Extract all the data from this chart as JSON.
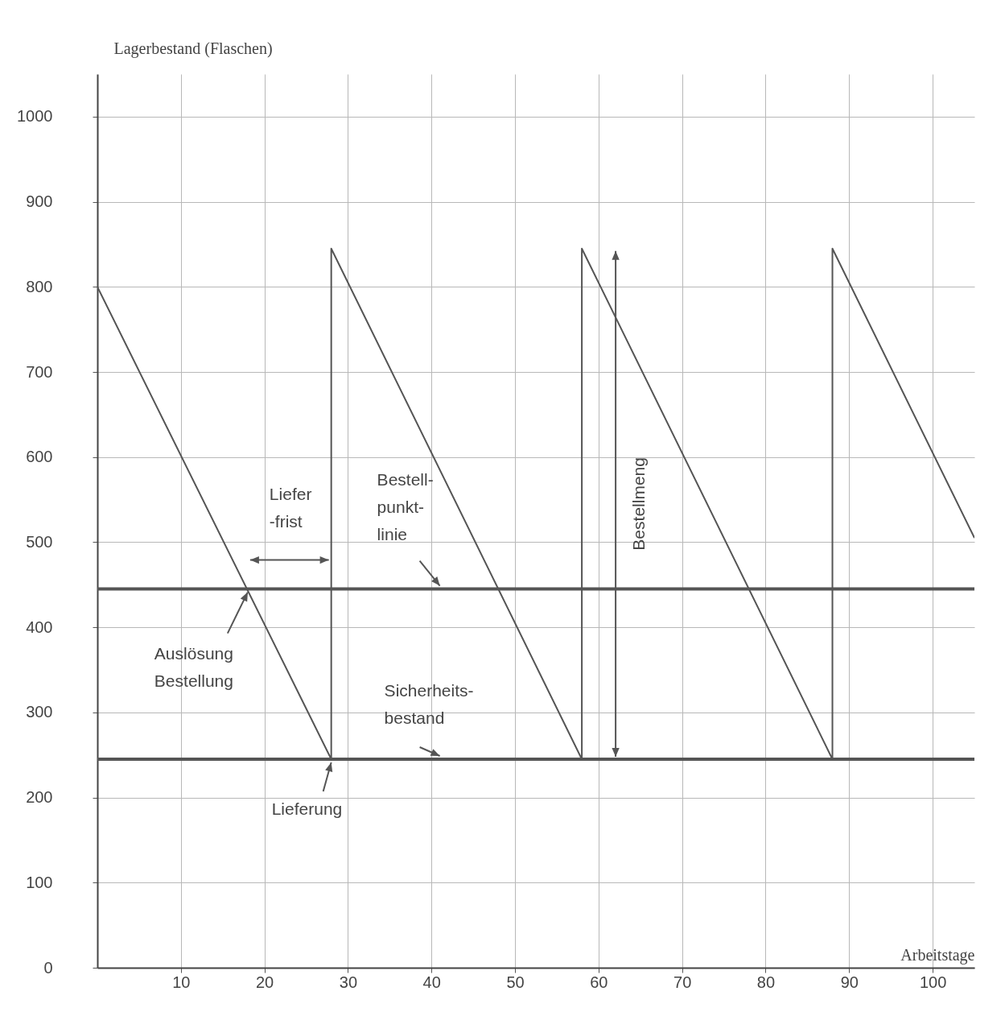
{
  "chart_data": {
    "type": "line",
    "xlabel": "Arbeitstage",
    "ylabel": "Lagerbestand (Flaschen)",
    "series": [
      {
        "color": "#555555",
        "x": [
          0,
          28,
          28,
          58,
          58,
          88,
          88,
          105
        ],
        "values": [
          800,
          245,
          845,
          245,
          845,
          245,
          845,
          505
        ]
      }
    ],
    "xlim": [
      0,
      105
    ],
    "ylim": [
      0,
      1050
    ],
    "xticks": [
      10,
      20,
      30,
      40,
      50,
      60,
      70,
      80,
      90,
      100
    ],
    "yticks": [
      0,
      100,
      200,
      300,
      400,
      500,
      600,
      700,
      800,
      900,
      1000
    ],
    "grid": true,
    "ref_lines": [
      {
        "axis": "y",
        "value": 445,
        "color": "#555555"
      },
      {
        "axis": "y",
        "value": 245,
        "color": "#555555"
      }
    ],
    "annotations": [
      "Liefer -frist",
      {
        "text": "Bestell- punkt- linie",
        "x": 41,
        "y": 445
      },
      {
        "text": "Auslösung Bestellung",
        "x": 18,
        "y": 445
      },
      {
        "text": "Sicherheits- bestand",
        "x": 41,
        "y": 245
      },
      {
        "text": "Lieferung",
        "x": 28,
        "y": 245
      },
      "Bestellmeng"
    ]
  }
}
